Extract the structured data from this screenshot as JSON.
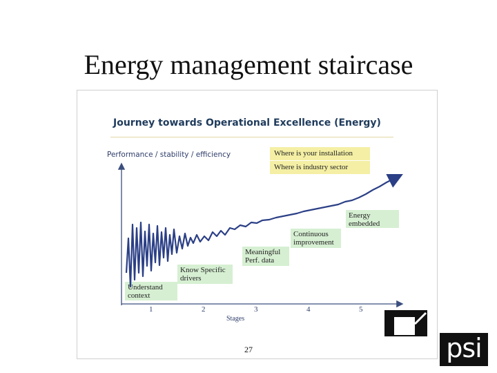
{
  "slide": {
    "title": "Energy management staircase",
    "page_number": "27",
    "logo_text": "psi"
  },
  "diagram": {
    "title": "Journey towards Operational Excellence (Energy)",
    "y_label": "Performance / stability / efficiency",
    "x_label": "Stages",
    "x_ticks": [
      "1",
      "2",
      "3",
      "4",
      "5"
    ],
    "callouts": [
      "Where is your installation",
      "Where is industry sector"
    ],
    "stages": [
      "Understand context",
      "Know Specific drivers",
      "Meaningful Perf. data",
      "Continuous improvement",
      "Energy embedded"
    ]
  },
  "colors": {
    "stage_fill": "#d6efd2",
    "callout_fill": "#f4efa4",
    "curve": "#2b3f86",
    "title_text": "#1f3b5c"
  }
}
